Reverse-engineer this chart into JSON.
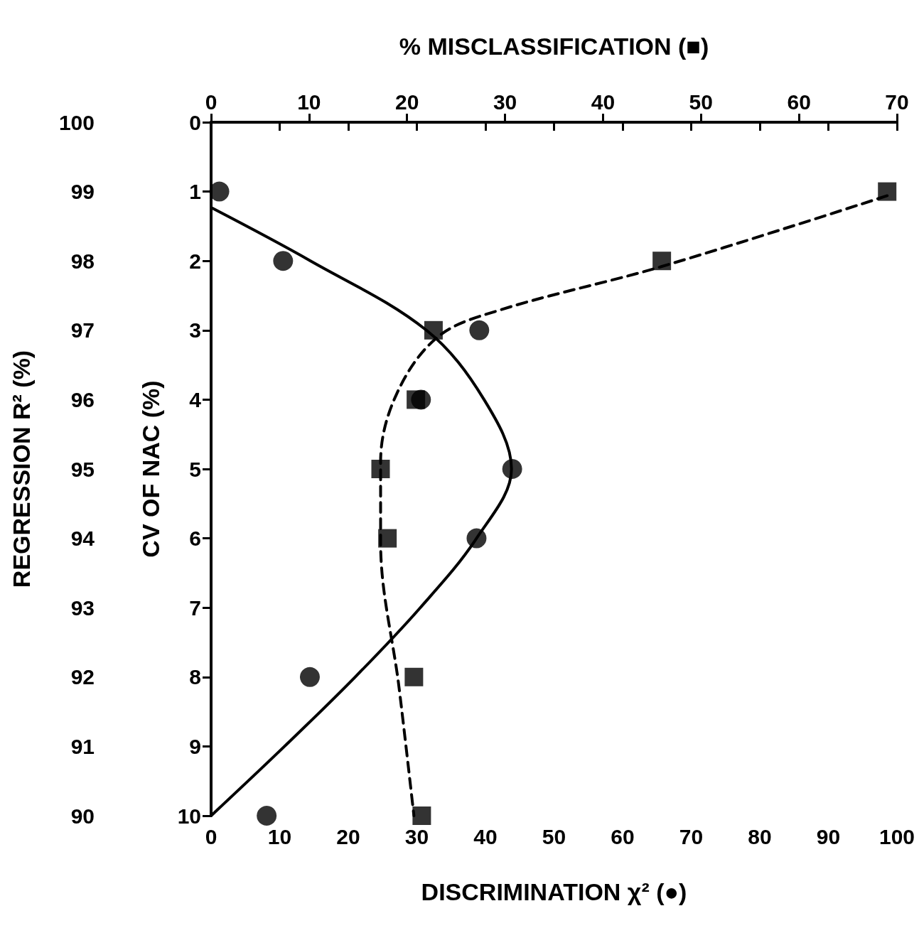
{
  "chart_data": {
    "type": "scatter",
    "orientation": "horizontal",
    "x2label": "% MISCLASSIFICATION (■)",
    "xlabel": "DISCRIMINATION χ² (●)",
    "ylabel": "CV OF NAC (%)",
    "y2label": "REGRESSION R² (%)",
    "xlim": [
      0,
      100
    ],
    "xticks": [
      0,
      10,
      20,
      30,
      40,
      50,
      60,
      70,
      80,
      90,
      100
    ],
    "x2lim": [
      0,
      70
    ],
    "x2ticks": [
      0,
      10,
      20,
      30,
      40,
      50,
      60,
      70
    ],
    "ylim": [
      10,
      0
    ],
    "yticks": [
      0,
      1,
      2,
      3,
      4,
      5,
      6,
      7,
      8,
      9,
      10
    ],
    "y2lim": [
      90,
      100
    ],
    "y2ticks": [
      90,
      91,
      92,
      93,
      94,
      95,
      96,
      97,
      98,
      99,
      100
    ],
    "grid": false,
    "series": [
      {
        "color": "#000000",
        "marker": "circle",
        "x": [
          1,
          2,
          3,
          4,
          5,
          6,
          8,
          10
        ],
        "values": [
          1.2,
          10.5,
          39.1,
          30.6,
          43.9,
          38.7,
          14.4,
          8.1
        ]
      },
      {
        "type": "line",
        "color": "#000000",
        "marker": "none",
        "line_style": "solid",
        "x": [
          1.23,
          2,
          3,
          4,
          5,
          6,
          7,
          8,
          9,
          10
        ],
        "values": [
          0,
          14.5,
          31.4,
          39.8,
          43.8,
          38.7,
          30.5,
          21,
          10.7,
          0
        ]
      },
      {
        "axis": "x2",
        "color": "#000000",
        "marker": "square",
        "x": [
          1,
          2,
          3,
          4,
          5,
          6,
          8,
          10
        ],
        "values": [
          69,
          46,
          22.7,
          20.9,
          17.3,
          18,
          20.7,
          21.5
        ]
      },
      {
        "type": "line",
        "axis": "x2",
        "color": "#000000",
        "marker": "none",
        "line_style": "dashed",
        "x": [
          1.06,
          2.08,
          2.72,
          3.1,
          3.93,
          4.9,
          6.05,
          8.17,
          10
        ],
        "values": [
          69,
          46,
          29.2,
          23.1,
          18.9,
          17.3,
          17.3,
          19.2,
          20.7
        ]
      }
    ]
  }
}
